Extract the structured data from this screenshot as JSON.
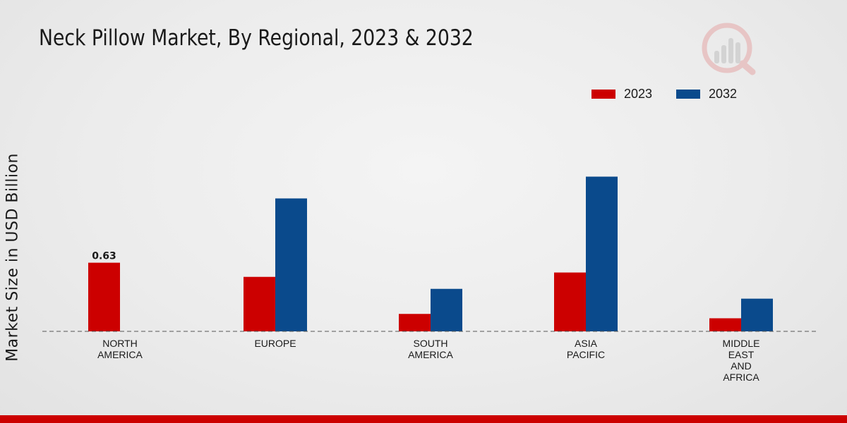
{
  "header": {
    "title": "Neck Pillow Market, By Regional, 2023 & 2032"
  },
  "colors": {
    "series_2023": "#cc0000",
    "series_2032": "#0a4a8c",
    "accent_bar": "#cc0000"
  },
  "chart_data": {
    "type": "bar",
    "title": "Neck Pillow Market, By Regional, 2023 & 2032",
    "xlabel": "",
    "ylabel": "Market Size in USD Billion",
    "categories": [
      "NORTH\nAMERICA",
      "EUROPE",
      "SOUTH\nAMERICA",
      "ASIA\nPACIFIC",
      "MIDDLE\nEAST\nAND\nAFRICA"
    ],
    "series": [
      {
        "name": "2023",
        "color": "#cc0000",
        "values": [
          0.63,
          0.5,
          0.16,
          0.54,
          0.12
        ]
      },
      {
        "name": "2032",
        "color": "#0a4a8c",
        "values": [
          0,
          1.22,
          0.39,
          1.42,
          0.3
        ]
      }
    ],
    "data_labels": [
      {
        "series": "2023",
        "category_index": 0,
        "text": "0.63"
      }
    ],
    "ylim": [
      0,
      2.2
    ],
    "grid": false,
    "legend_position": "top-right"
  }
}
